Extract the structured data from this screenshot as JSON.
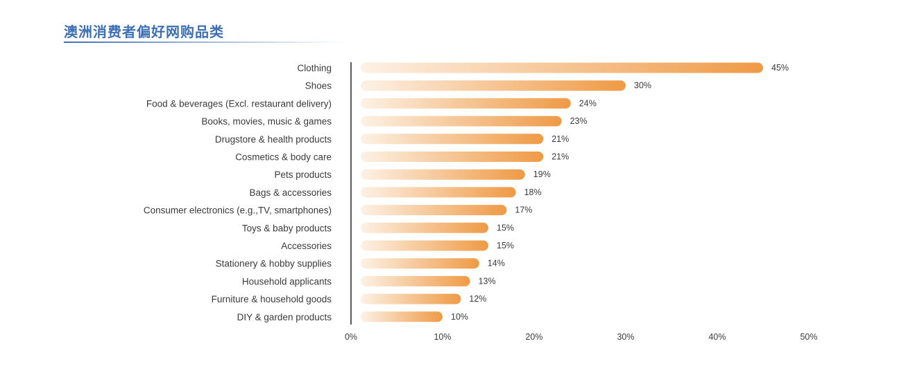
{
  "title": "澳洲消费者偏好网购品类",
  "colors": {
    "title": "#3b6fb6",
    "bar_start": "#fdf1e5",
    "bar_end": "#ef9a45",
    "text": "#3a3a3a"
  },
  "chart_data": {
    "type": "bar",
    "orientation": "horizontal",
    "title": "澳洲消费者偏好网购品类",
    "categories": [
      "Clothing",
      "Shoes",
      "Food & beverages (Excl. restaurant delivery)",
      "Books, movies, music & games",
      "Drugstore & health products",
      "Cosmetics & body care",
      "Pets products",
      "Bags & accessories",
      "Consumer electronics (e.g.,TV, smartphones)",
      "Toys & baby products",
      "Accessories",
      "Stationery & hobby supplies",
      "Household applicants",
      "Furniture & household goods",
      "DIY & garden products"
    ],
    "values": [
      45,
      30,
      24,
      23,
      21,
      21,
      19,
      18,
      17,
      15,
      15,
      14,
      13,
      12,
      10
    ],
    "value_labels": [
      "45%",
      "30%",
      "24%",
      "23%",
      "21%",
      "21%",
      "19%",
      "18%",
      "17%",
      "15%",
      "15%",
      "14%",
      "13%",
      "12%",
      "10%"
    ],
    "xlim": [
      0,
      50
    ],
    "xticks": [
      0,
      10,
      20,
      30,
      40,
      50
    ],
    "xtick_labels": [
      "0%",
      "10%",
      "20%",
      "30%",
      "40%",
      "50%"
    ],
    "xlabel": "",
    "ylabel": "",
    "grid": false,
    "legend": "none"
  }
}
